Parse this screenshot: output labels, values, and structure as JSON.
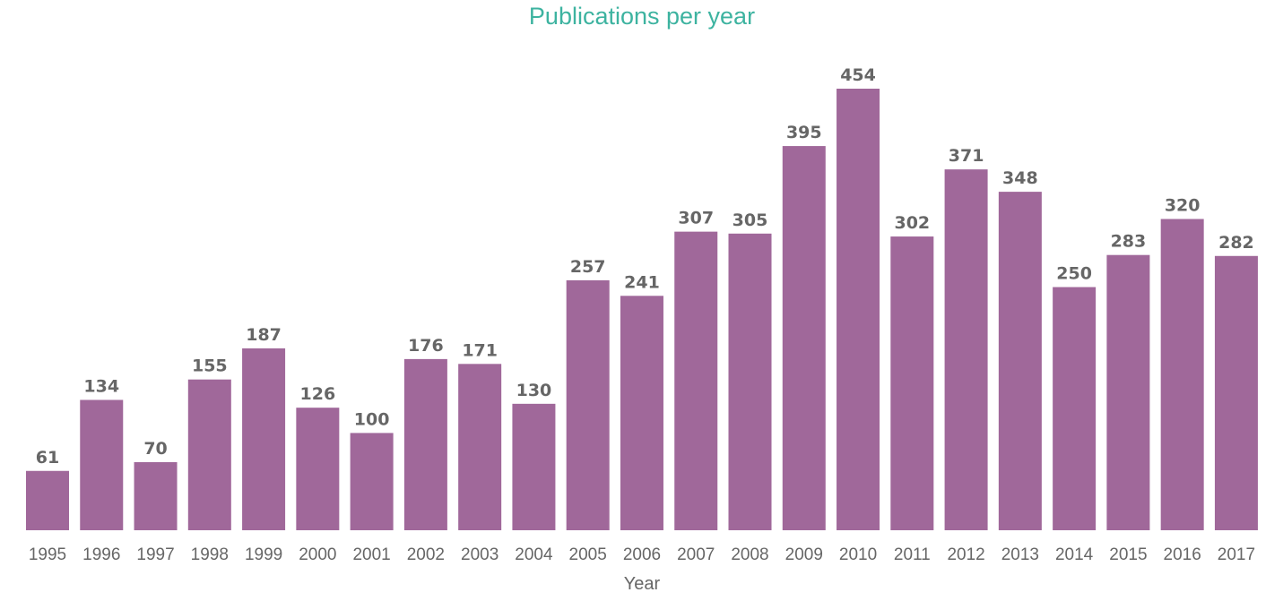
{
  "chart_data": {
    "type": "bar",
    "title": "Publications per year",
    "xlabel": "Year",
    "ylabel": "",
    "categories": [
      "1995",
      "1996",
      "1997",
      "1998",
      "1999",
      "2000",
      "2001",
      "2002",
      "2003",
      "2004",
      "2005",
      "2006",
      "2007",
      "2008",
      "2009",
      "2010",
      "2011",
      "2012",
      "2013",
      "2014",
      "2015",
      "2016",
      "2017"
    ],
    "values": [
      61,
      134,
      70,
      155,
      187,
      126,
      100,
      176,
      171,
      130,
      257,
      241,
      307,
      305,
      395,
      454,
      302,
      371,
      348,
      250,
      283,
      320,
      282
    ],
    "ylim": [
      0,
      454
    ],
    "grid": false,
    "data_labels": true,
    "colors": {
      "bar": "#A0689A",
      "title": "#3DB3A0",
      "text": "#666666"
    }
  }
}
